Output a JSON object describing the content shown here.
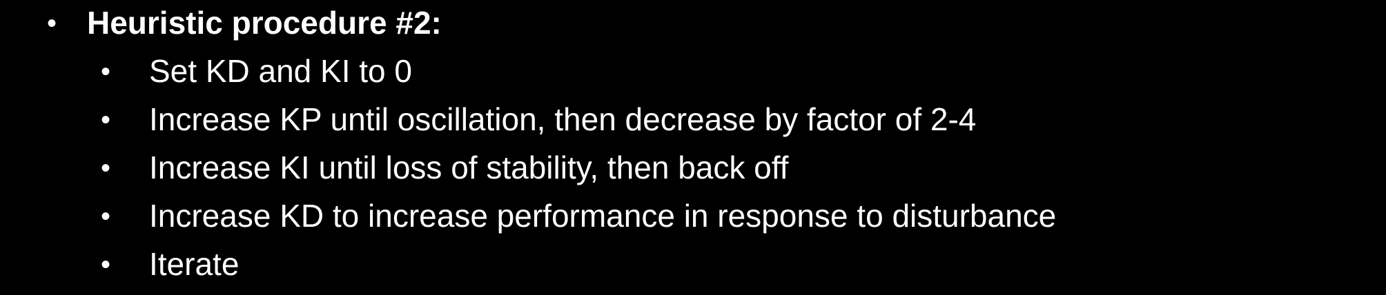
{
  "slide": {
    "heading": {
      "bullet": "•",
      "text": "Heuristic procedure #2:"
    },
    "items": [
      {
        "bullet": "•",
        "text": "Set KD and KI to 0"
      },
      {
        "bullet": "•",
        "text": "Increase KP until oscillation, then decrease by factor of 2-4"
      },
      {
        "bullet": "•",
        "text": "Increase KI until loss of stability, then back off"
      },
      {
        "bullet": "•",
        "text": "Increase KD to increase performance in response to disturbance"
      },
      {
        "bullet": "•",
        "text": "Iterate"
      }
    ]
  },
  "colors": {
    "background": "#000000",
    "text": "#ffffff"
  }
}
